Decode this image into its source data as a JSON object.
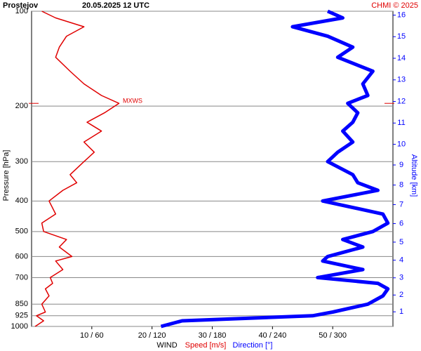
{
  "chart_data": {
    "type": "profile",
    "station": "Prostejov",
    "title": "20.05.2025 12 UTC",
    "credit": "CHMI © 2025",
    "y_label": "Pressure [hPa]",
    "y2_label": "Altitude [km]",
    "x_label": "WIND",
    "ylim": [
      1000,
      100
    ],
    "log_y": true,
    "yticks": [
      100,
      200,
      300,
      400,
      500,
      600,
      700,
      850,
      925,
      1000
    ],
    "y2ticks": [
      1,
      2,
      3,
      4,
      5,
      6,
      7,
      8,
      9,
      10,
      11,
      12,
      13,
      14,
      15,
      16
    ],
    "y2_color": "#0000ff",
    "xlim": [
      0,
      60
    ],
    "x2lim": [
      0,
      360
    ],
    "xticks": [
      {
        "value": 10,
        "label": "10 / 60"
      },
      {
        "value": 20,
        "label": "20 / 120"
      },
      {
        "value": 30,
        "label": "30 / 180"
      },
      {
        "value": 40,
        "label": "40 / 240"
      },
      {
        "value": 50,
        "label": "50 / 300"
      }
    ],
    "max_wind": {
      "label": "MXWS",
      "pressure": 196,
      "color": "#e00000"
    },
    "pressure": [
      1000,
      960,
      925,
      900,
      850,
      800,
      760,
      730,
      700,
      660,
      620,
      600,
      560,
      530,
      500,
      470,
      440,
      400,
      370,
      350,
      330,
      300,
      280,
      260,
      240,
      225,
      210,
      196,
      185,
      170,
      155,
      140,
      130,
      120,
      112,
      105,
      100
    ],
    "series": [
      {
        "name": "Speed [m/s]",
        "color": "#e00000",
        "width": 1.5,
        "values": [
          0.6,
          2,
          0.8,
          2.3,
          1.7,
          2.9,
          2.3,
          3.5,
          3.1,
          5.2,
          4,
          6.7,
          4.6,
          5.8,
          2,
          1.7,
          4,
          2.9,
          5.2,
          7.5,
          6.4,
          8.7,
          10.4,
          8.7,
          11.6,
          9.2,
          12.1,
          14.5,
          11.6,
          8.7,
          6.4,
          4,
          4.6,
          5.8,
          8.7,
          4,
          1.7
        ]
      },
      {
        "name": "Direction [°]",
        "color": "#0000ff",
        "width": 5,
        "axis": "x2",
        "values": [
          129,
          150,
          280,
          300,
          335,
          350,
          355,
          345,
          285,
          330,
          290,
          295,
          330,
          310,
          340,
          355,
          350,
          290,
          345,
          325,
          320,
          295,
          305,
          320,
          310,
          320,
          325,
          315,
          335,
          330,
          340,
          305,
          320,
          295,
          260,
          310,
          295
        ]
      }
    ]
  }
}
